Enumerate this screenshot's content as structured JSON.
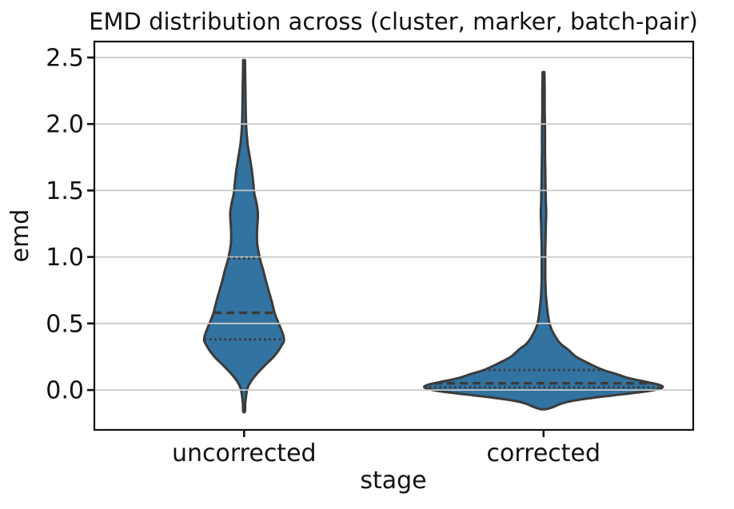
{
  "chart_data": {
    "type": "violin",
    "title": "EMD distribution across (cluster, marker, batch-pair)",
    "xlabel": "stage",
    "ylabel": "emd",
    "categories": [
      "uncorrected",
      "corrected"
    ],
    "ylim": [
      -0.3,
      2.62
    ],
    "yticks": [
      0.0,
      0.5,
      1.0,
      1.5,
      2.0,
      2.5
    ],
    "grid": true,
    "legend": false,
    "colors": {
      "violin_fill": "#3273a2",
      "violin_edge": "#3b3b3b",
      "quartile_line": "#3b3b3b",
      "grid_line": "#c9c9c9",
      "spine": "#111111",
      "text": "#111111",
      "background": "#ffffff"
    },
    "series": [
      {
        "name": "uncorrected",
        "x": 0,
        "stats": {
          "min": -0.16,
          "q1": 0.38,
          "median": 0.58,
          "q3": 0.99,
          "max": 2.48
        },
        "profile": [
          [
            2.48,
            0.003
          ],
          [
            2.35,
            0.004
          ],
          [
            2.2,
            0.005
          ],
          [
            2.05,
            0.006
          ],
          [
            1.95,
            0.008
          ],
          [
            1.85,
            0.012
          ],
          [
            1.75,
            0.019
          ],
          [
            1.65,
            0.026
          ],
          [
            1.55,
            0.031
          ],
          [
            1.48,
            0.034
          ],
          [
            1.4,
            0.042
          ],
          [
            1.33,
            0.046
          ],
          [
            1.26,
            0.045
          ],
          [
            1.18,
            0.043
          ],
          [
            1.1,
            0.044
          ],
          [
            1.03,
            0.049
          ],
          [
            0.97,
            0.055
          ],
          [
            0.9,
            0.064
          ],
          [
            0.82,
            0.073
          ],
          [
            0.74,
            0.083
          ],
          [
            0.66,
            0.093
          ],
          [
            0.58,
            0.102
          ],
          [
            0.52,
            0.112
          ],
          [
            0.46,
            0.123
          ],
          [
            0.41,
            0.131
          ],
          [
            0.37,
            0.133
          ],
          [
            0.33,
            0.124
          ],
          [
            0.29,
            0.113
          ],
          [
            0.25,
            0.099
          ],
          [
            0.21,
            0.081
          ],
          [
            0.17,
            0.063
          ],
          [
            0.13,
            0.046
          ],
          [
            0.09,
            0.031
          ],
          [
            0.05,
            0.019
          ],
          [
            0.01,
            0.011
          ],
          [
            -0.04,
            0.007
          ],
          [
            -0.1,
            0.004
          ],
          [
            -0.16,
            0.003
          ]
        ]
      },
      {
        "name": "corrected",
        "x": 1,
        "stats": {
          "min": -0.145,
          "q1": 0.02,
          "median": 0.05,
          "q3": 0.15,
          "max": 2.39
        },
        "profile": [
          [
            2.39,
            0.003
          ],
          [
            2.25,
            0.004
          ],
          [
            2.1,
            0.004
          ],
          [
            1.95,
            0.005
          ],
          [
            1.8,
            0.005
          ],
          [
            1.65,
            0.006
          ],
          [
            1.5,
            0.007
          ],
          [
            1.4,
            0.008
          ],
          [
            1.33,
            0.009
          ],
          [
            1.25,
            0.008
          ],
          [
            1.15,
            0.007
          ],
          [
            1.05,
            0.006
          ],
          [
            0.95,
            0.006
          ],
          [
            0.85,
            0.006
          ],
          [
            0.72,
            0.008
          ],
          [
            0.62,
            0.012
          ],
          [
            0.55,
            0.016
          ],
          [
            0.5,
            0.02
          ],
          [
            0.45,
            0.028
          ],
          [
            0.4,
            0.04
          ],
          [
            0.35,
            0.056
          ],
          [
            0.3,
            0.084
          ],
          [
            0.25,
            0.109
          ],
          [
            0.2,
            0.151
          ],
          [
            0.15,
            0.2
          ],
          [
            0.12,
            0.243
          ],
          [
            0.09,
            0.283
          ],
          [
            0.06,
            0.345
          ],
          [
            0.04,
            0.385
          ],
          [
            0.02,
            0.398
          ],
          [
            0.0,
            0.37
          ],
          [
            -0.02,
            0.31
          ],
          [
            -0.04,
            0.235
          ],
          [
            -0.06,
            0.16
          ],
          [
            -0.08,
            0.1
          ],
          [
            -0.1,
            0.063
          ],
          [
            -0.115,
            0.046
          ],
          [
            -0.13,
            0.03
          ],
          [
            -0.14,
            0.016
          ],
          [
            -0.145,
            0.006
          ]
        ]
      }
    ]
  }
}
